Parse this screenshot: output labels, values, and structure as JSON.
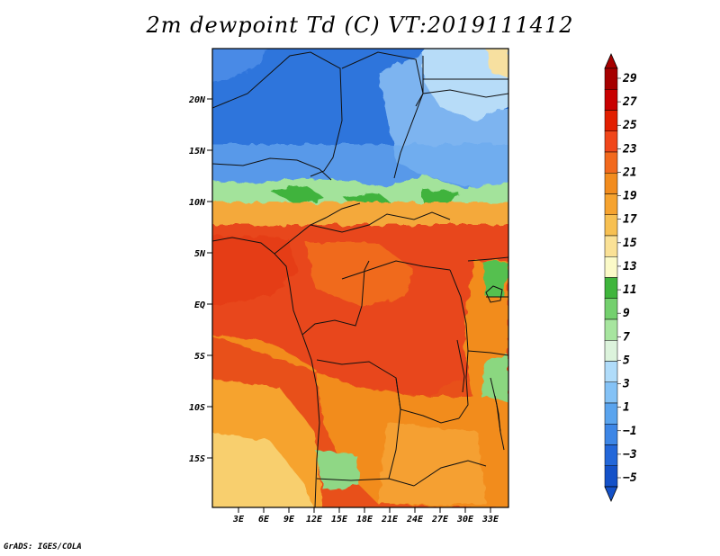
{
  "title": "2m dewpoint Td (C) VT:2019111412",
  "credit": "GrADS: IGES/COLA",
  "axes": {
    "lat_labels": [
      "20N",
      "15N",
      "10N",
      "5N",
      "EQ",
      "5S",
      "10S",
      "15S"
    ],
    "lon_labels": [
      "3E",
      "6E",
      "9E",
      "12E",
      "15E",
      "18E",
      "21E",
      "24E",
      "27E",
      "30E",
      "33E"
    ]
  },
  "colorbar": {
    "labels": [
      "29",
      "27",
      "25",
      "23",
      "21",
      "19",
      "17",
      "15",
      "13",
      "11",
      "9",
      "7",
      "5",
      "3",
      "1",
      "−1",
      "−3",
      "−5"
    ],
    "colors": [
      "#a60000",
      "#c80000",
      "#e21f00",
      "#f0461a",
      "#f2691d",
      "#f28c1e",
      "#f6a32f",
      "#f7c052",
      "#fae196",
      "#fbfac8",
      "#3fb53c",
      "#74d06e",
      "#a7e59f",
      "#dcf3dc",
      "#b0dcfa",
      "#84c2f6",
      "#5aa4ee",
      "#3d86e6",
      "#2367d9",
      "#1451c8"
    ]
  },
  "map": {
    "lat_range": [
      -19.5,
      24.5
    ],
    "lon_range": [
      0,
      35
    ]
  }
}
